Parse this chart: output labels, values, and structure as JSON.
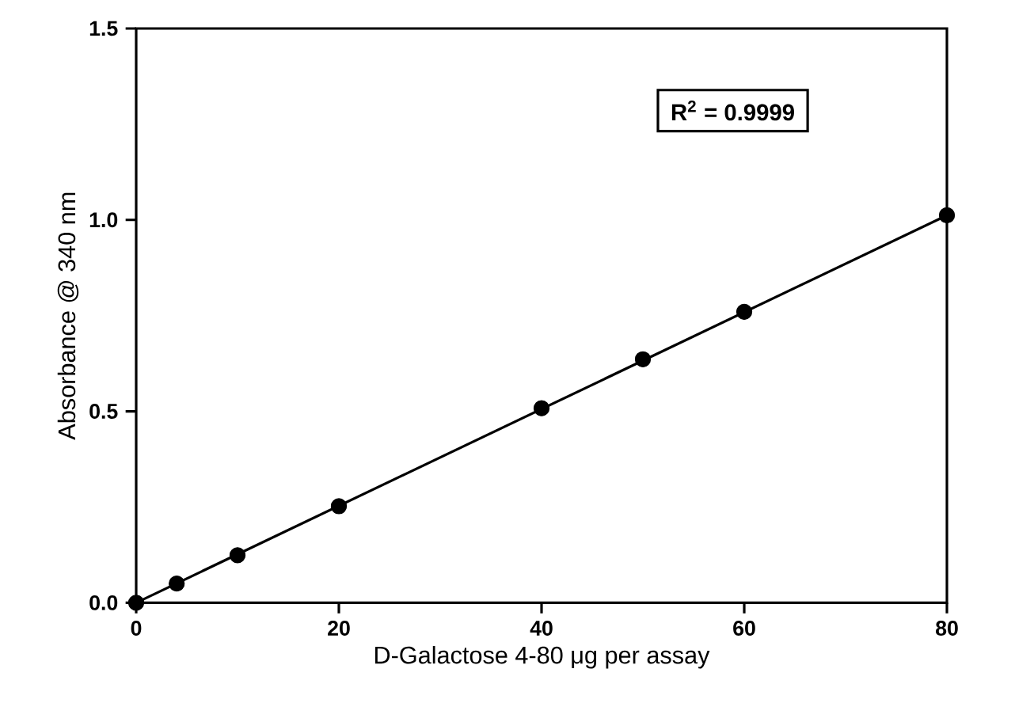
{
  "chart_data": {
    "type": "line",
    "xlabel": "D-Galactose 4-80 μg per assay",
    "ylabel": "Absorbance @ 340 nm",
    "annotations": [
      "R$^{2}$ = 0.9999"
    ],
    "series": [
      {
        "type": "scatter",
        "marker": "circle",
        "color": "#000000",
        "x": [
          0,
          4,
          10,
          20,
          40,
          50,
          60,
          80
        ],
        "values": [
          0,
          0.05,
          0.124,
          0.252,
          0.508,
          0.636,
          0.76,
          1.012
        ]
      },
      {
        "marker": "none",
        "color": "#000000",
        "x": [
          0,
          80
        ],
        "values": [
          0,
          1.012
        ]
      }
    ],
    "line_style": "solid",
    "xlim": [
      0,
      80
    ],
    "ylim": [
      0,
      1.5
    ],
    "xticks": [
      0,
      20,
      40,
      60,
      80
    ],
    "yticks": [
      {
        "value": 0,
        "label": "0.0"
      },
      {
        "value": 0.5,
        "label": "0.5"
      },
      {
        "value": 1.0,
        "label": "1.0"
      },
      {
        "value": 1.5,
        "label": "1.5"
      }
    ],
    "grid": false
  }
}
